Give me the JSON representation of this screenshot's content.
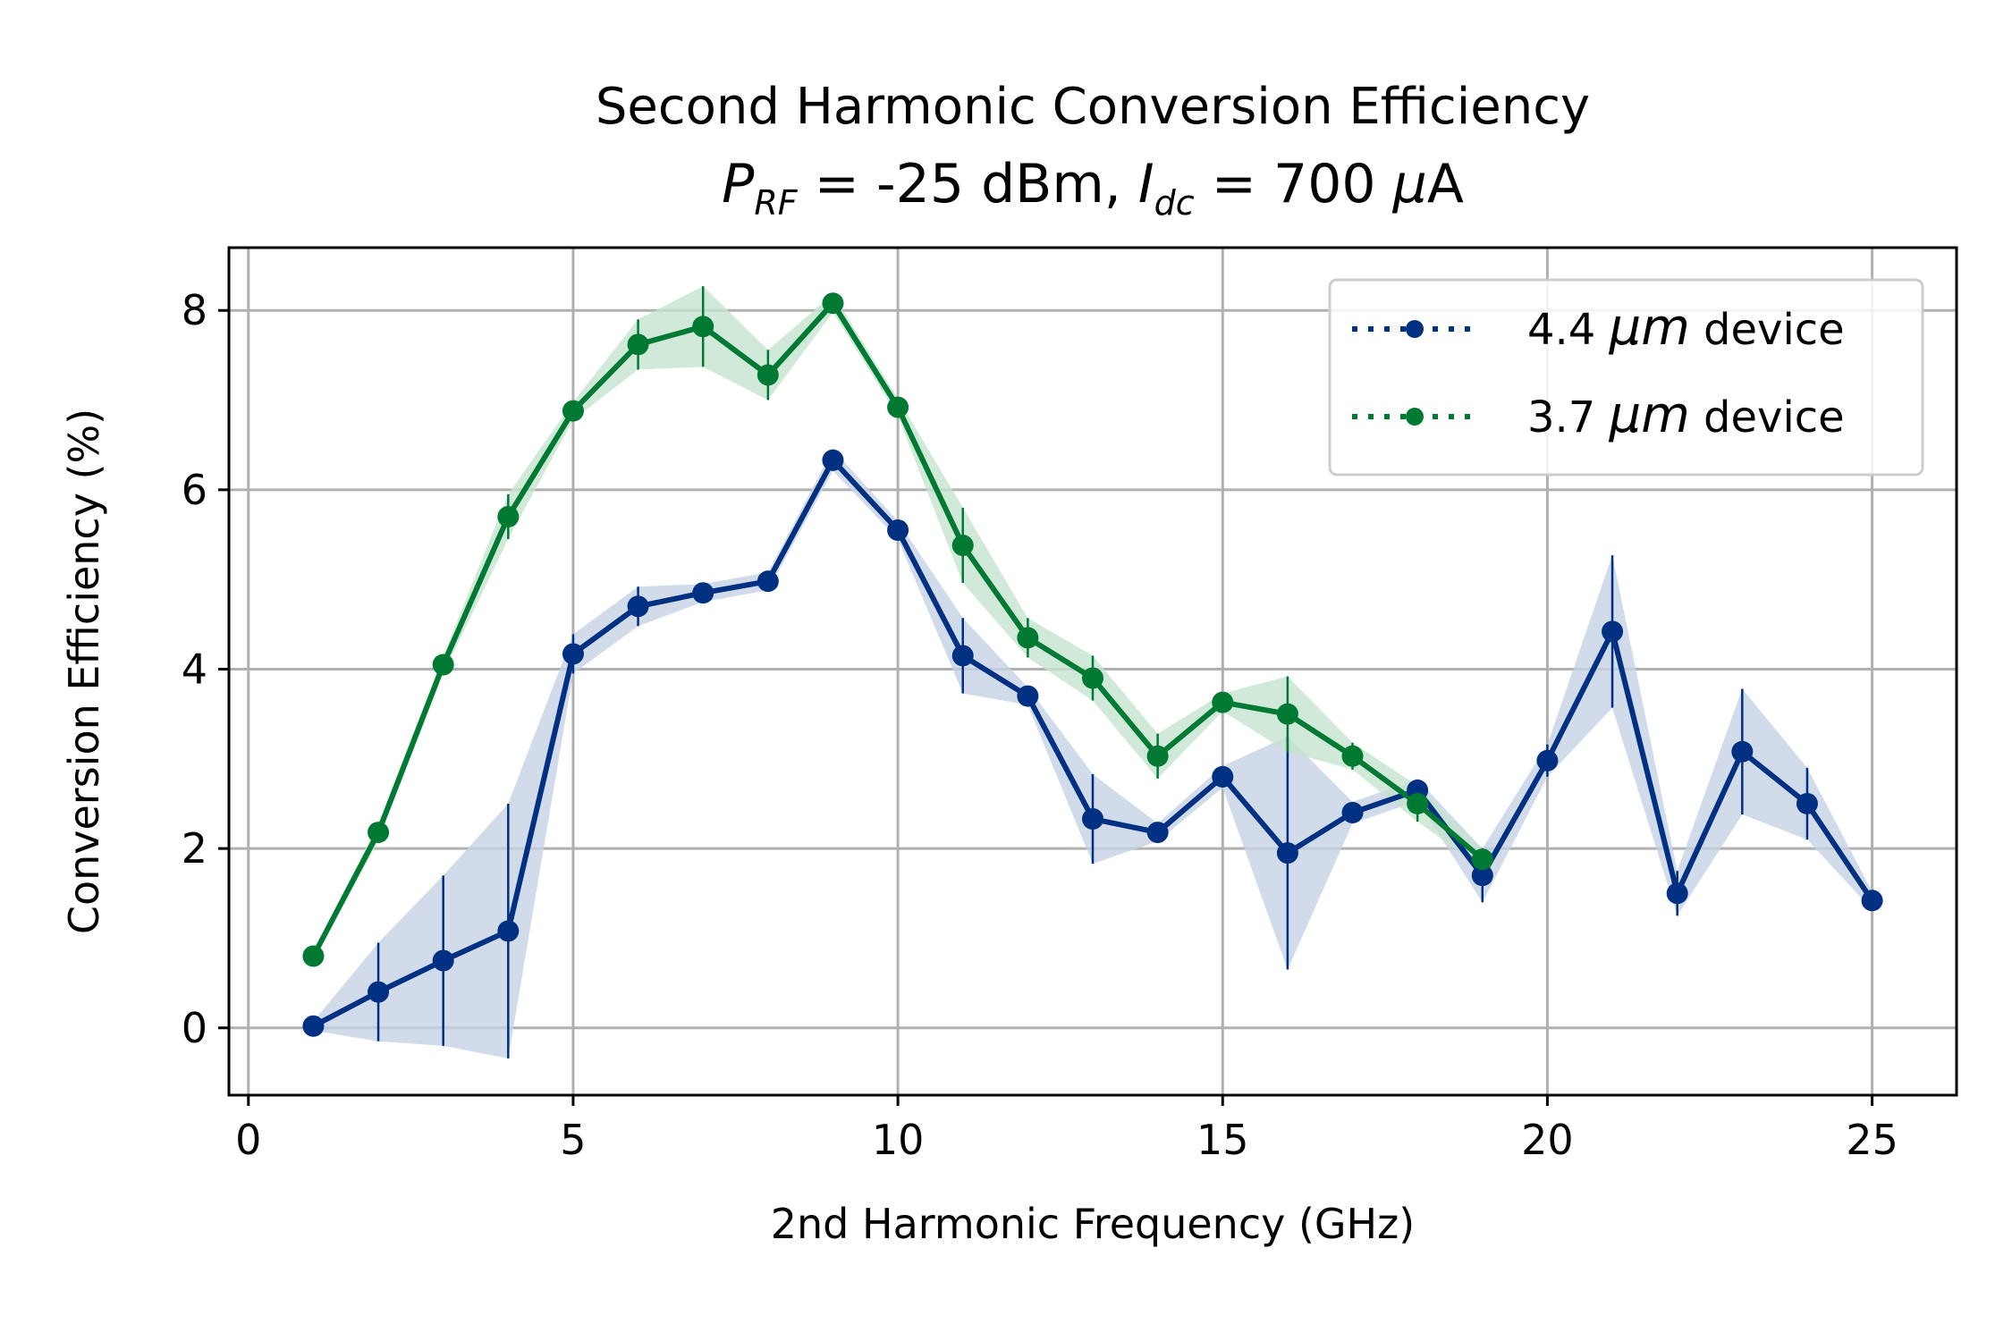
{
  "chart_data": {
    "type": "line",
    "title": "Second Harmonic Conversion Efficiency",
    "subtitle": {
      "p_sym": "P",
      "p_sub": "RF",
      "p_rest": " = -25 dBm, ",
      "i_sym": "I",
      "i_sub": "dc",
      "i_rest": " = 700 ",
      "mu": "μ",
      "unit": "A"
    },
    "xlabel": "2nd Harmonic Frequency (GHz)",
    "ylabel": "Conversion Efficiency (%)",
    "xlim": [
      -0.3,
      26.3
    ],
    "ylim": [
      -0.75,
      8.7
    ],
    "xticks": [
      0,
      5,
      10,
      15,
      20,
      25
    ],
    "yticks": [
      0,
      2,
      4,
      6,
      8
    ],
    "grid": true,
    "legend_position": "top-right",
    "series": [
      {
        "name_pre": "4.4 ",
        "name_mu": "μm",
        "name_post": " device",
        "color": "#003082",
        "fill": "#c6d2e4",
        "x": [
          1,
          2,
          3,
          4,
          5,
          6,
          7,
          8,
          9,
          10,
          11,
          12,
          13,
          14,
          15,
          16,
          17,
          18,
          19,
          20,
          21,
          22,
          23,
          24,
          25
        ],
        "y": [
          0.02,
          0.4,
          0.75,
          1.08,
          4.17,
          4.7,
          4.85,
          4.98,
          6.33,
          5.55,
          4.15,
          3.7,
          2.33,
          2.18,
          2.8,
          1.95,
          2.4,
          2.65,
          1.7,
          2.98,
          4.42,
          1.5,
          3.08,
          2.5,
          1.42
        ],
        "err": [
          0.05,
          0.55,
          0.95,
          1.42,
          0.22,
          0.22,
          0.1,
          0.1,
          0.12,
          0.1,
          0.42,
          0.1,
          0.5,
          0.1,
          0.12,
          1.3,
          0.12,
          0.12,
          0.3,
          0.18,
          0.85,
          0.25,
          0.7,
          0.4,
          0.1
        ]
      },
      {
        "name_pre": "3.7 ",
        "name_mu": "μm",
        "name_post": " device",
        "color": "#007a33",
        "fill": "#c4e4cf",
        "x": [
          1,
          2,
          3,
          4,
          5,
          6,
          7,
          8,
          9,
          10,
          11,
          12,
          13,
          14,
          15,
          16,
          17,
          18,
          19
        ],
        "y": [
          0.8,
          2.18,
          4.05,
          5.7,
          6.88,
          7.62,
          7.82,
          7.28,
          8.08,
          6.92,
          5.38,
          4.35,
          3.9,
          3.03,
          3.63,
          3.5,
          3.03,
          2.5,
          1.88
        ],
        "err": [
          0.05,
          0.1,
          0.1,
          0.25,
          0.1,
          0.28,
          0.45,
          0.28,
          0.1,
          0.1,
          0.42,
          0.22,
          0.25,
          0.25,
          0.1,
          0.42,
          0.15,
          0.2,
          0.1
        ]
      }
    ]
  }
}
